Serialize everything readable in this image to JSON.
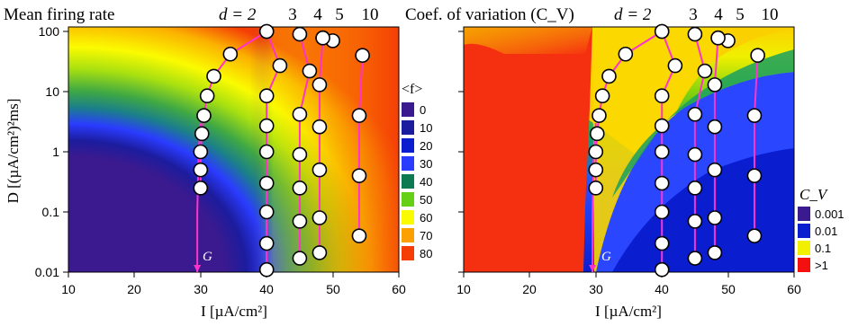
{
  "chart_data": [
    {
      "type": "heatmap",
      "title": "Mean firing rate",
      "xlabel": "I [µA/cm²]",
      "ylabel": "D [(µA/cm²)²ms]",
      "xlim": [
        10,
        60
      ],
      "ylim": [
        0.01,
        130
      ],
      "yscale": "log",
      "x_ticks": [
        "10",
        "20",
        "30",
        "40",
        "50",
        "60"
      ],
      "y_ticks": [
        "0.01",
        "0.1",
        "1",
        "10",
        "100"
      ],
      "legend": {
        "title": "<f>",
        "position": "right",
        "levels": [
          "0",
          "10",
          "20",
          "30",
          "40",
          "50",
          "60",
          "70",
          "80"
        ],
        "colors": [
          "#3b1a8f",
          "#1c1c9e",
          "#0a1ed0",
          "#2a3cff",
          "#0e7a52",
          "#66d016",
          "#fbfb00",
          "#fba000",
          "#f53e06"
        ]
      },
      "d_labels": [
        "2",
        "3",
        "4",
        "5",
        "10"
      ],
      "marker": "G",
      "curves": [
        {
          "name": "G",
          "points": [
            [
              29.5,
              0.01
            ],
            [
              29.5,
              0.1
            ],
            [
              29.7,
              1
            ],
            [
              30,
              3
            ]
          ]
        },
        {
          "name": "d=2",
          "points": [
            [
              40,
              0.011
            ],
            [
              40,
              0.03
            ],
            [
              40,
              0.1
            ],
            [
              40,
              0.3
            ],
            [
              40,
              1
            ],
            [
              40,
              2.7
            ],
            [
              40,
              8.5
            ],
            [
              42,
              27
            ],
            [
              40,
              100
            ]
          ]
        },
        {
          "name": "d=2 (lower)",
          "points": [
            [
              30,
              0.25
            ],
            [
              30,
              0.5
            ],
            [
              30,
              1
            ],
            [
              30.2,
              2
            ],
            [
              30.5,
              4
            ],
            [
              31,
              8.5
            ],
            [
              32,
              18
            ],
            [
              34.5,
              42
            ],
            [
              40,
              100
            ]
          ]
        },
        {
          "name": "d=3",
          "points": [
            [
              45,
              0.017
            ],
            [
              45,
              0.07
            ],
            [
              45,
              0.25
            ],
            [
              45,
              0.9
            ],
            [
              45,
              4.2
            ],
            [
              46.5,
              22
            ],
            [
              45,
              90
            ]
          ]
        },
        {
          "name": "d=4",
          "points": [
            [
              48,
              0.021
            ],
            [
              48,
              0.08
            ],
            [
              48,
              0.5
            ],
            [
              48,
              2.6
            ],
            [
              48,
              13
            ],
            [
              48.5,
              78
            ]
          ]
        },
        {
          "name": "d=5",
          "points": [
            [
              50,
              70
            ],
            [
              48.5,
              78
            ]
          ]
        },
        {
          "name": "d=10",
          "points": [
            [
              54,
              0.04
            ],
            [
              54,
              0.4
            ],
            [
              54,
              4
            ],
            [
              54.5,
              40
            ]
          ]
        }
      ]
    },
    {
      "type": "heatmap",
      "title": "Coef. of variation (C_V)",
      "xlabel": "I [µA/cm²]",
      "ylabel": "",
      "xlim": [
        10,
        60
      ],
      "ylim": [
        0.01,
        130
      ],
      "yscale": "log",
      "x_ticks": [
        "10",
        "20",
        "30",
        "40",
        "50",
        "60"
      ],
      "legend": {
        "title": "C_V",
        "position": "right",
        "levels": [
          "0.001",
          "0.01",
          "0.1",
          ">1"
        ],
        "colors": [
          "#3b1a8f",
          "#0a1ed0",
          "#f0f000",
          "#f51010"
        ]
      },
      "d_labels": [
        "2",
        "3",
        "4",
        "5",
        "10"
      ],
      "marker": "G"
    }
  ],
  "panel1": {
    "title": "Mean firing rate",
    "d_eq": "d = 2",
    "d_labels": [
      "3",
      "4",
      "5",
      "10"
    ],
    "ylabel": "D [(µA/cm²)²ms]",
    "xlabel": "I [µA/cm²]",
    "marker": "G",
    "legend_title": "<f>",
    "legend_labels": [
      "0",
      "10",
      "20",
      "30",
      "40",
      "50",
      "60",
      "70",
      "80"
    ]
  },
  "panel2": {
    "title": "Coef. of variation (C_V)",
    "d_eq": "d = 2",
    "d_labels": [
      "3",
      "4",
      "5",
      "10"
    ],
    "xlabel": "I [µA/cm²]",
    "marker": "G",
    "legend_title": "C_V",
    "legend_labels": [
      "0.001",
      "0.01",
      "0.1",
      ">1"
    ]
  }
}
